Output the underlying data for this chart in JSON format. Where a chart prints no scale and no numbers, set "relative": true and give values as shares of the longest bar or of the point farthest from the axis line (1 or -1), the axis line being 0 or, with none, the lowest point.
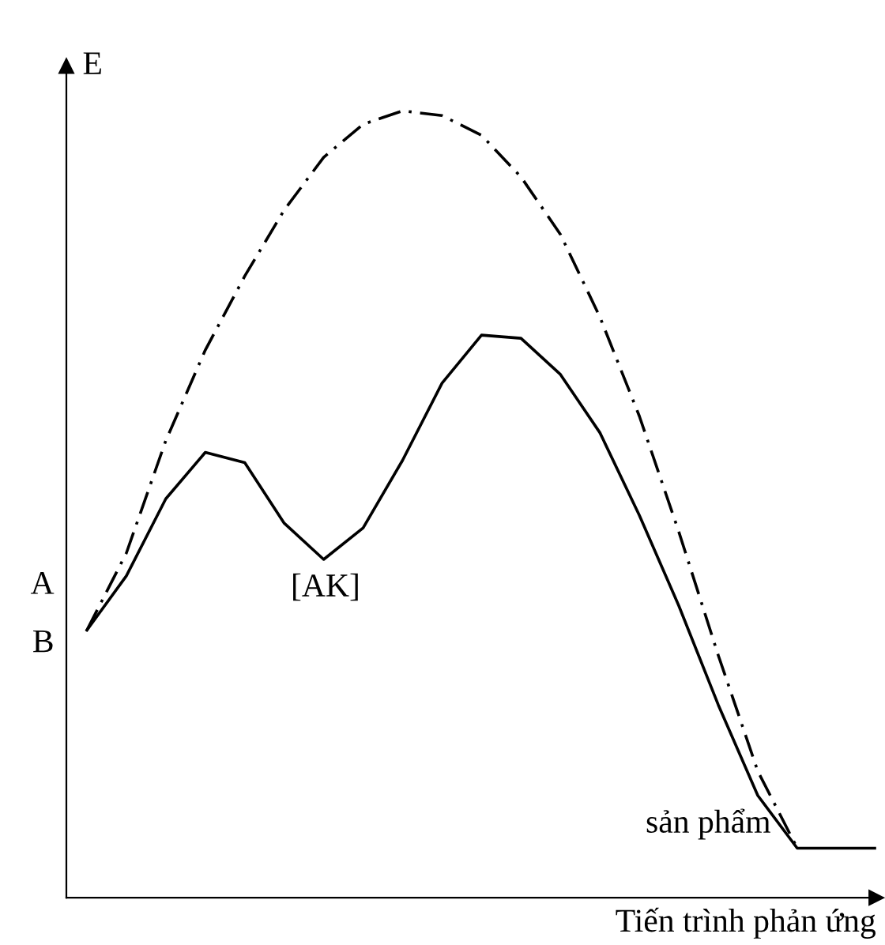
{
  "chart_data": {
    "type": "line",
    "relative": true,
    "ylabel": "E",
    "xlabel": "Tiến trình phản ứng",
    "marker": "none",
    "categories": [
      null,
      null,
      null,
      null,
      null,
      null,
      null,
      null,
      null,
      null,
      null,
      null,
      null,
      null,
      null,
      null,
      null,
      null,
      null,
      null,
      null
    ],
    "series": [
      {
        "color": "#000000",
        "line_style": "solid",
        "values": [
          0.34,
          0.409,
          0.507,
          0.566,
          0.553,
          0.476,
          0.43,
          0.47,
          0.556,
          0.654,
          0.715,
          0.711,
          0.665,
          0.591,
          0.486,
          0.371,
          0.245,
          0.13,
          0.063,
          0.063,
          0.063
        ]
      },
      {
        "color": "#000000",
        "line_style": "dashed",
        "values": [
          0.34,
          0.438,
          0.581,
          0.696,
          0.79,
          0.874,
          0.941,
          0.983,
          1.0,
          0.994,
          0.969,
          0.916,
          0.843,
          0.738,
          0.612,
          0.465,
          0.308,
          0.161,
          0.063,
          null,
          null
        ]
      }
    ],
    "annotations": [
      "A",
      "B",
      "[AK]",
      "sản phẩm"
    ]
  }
}
